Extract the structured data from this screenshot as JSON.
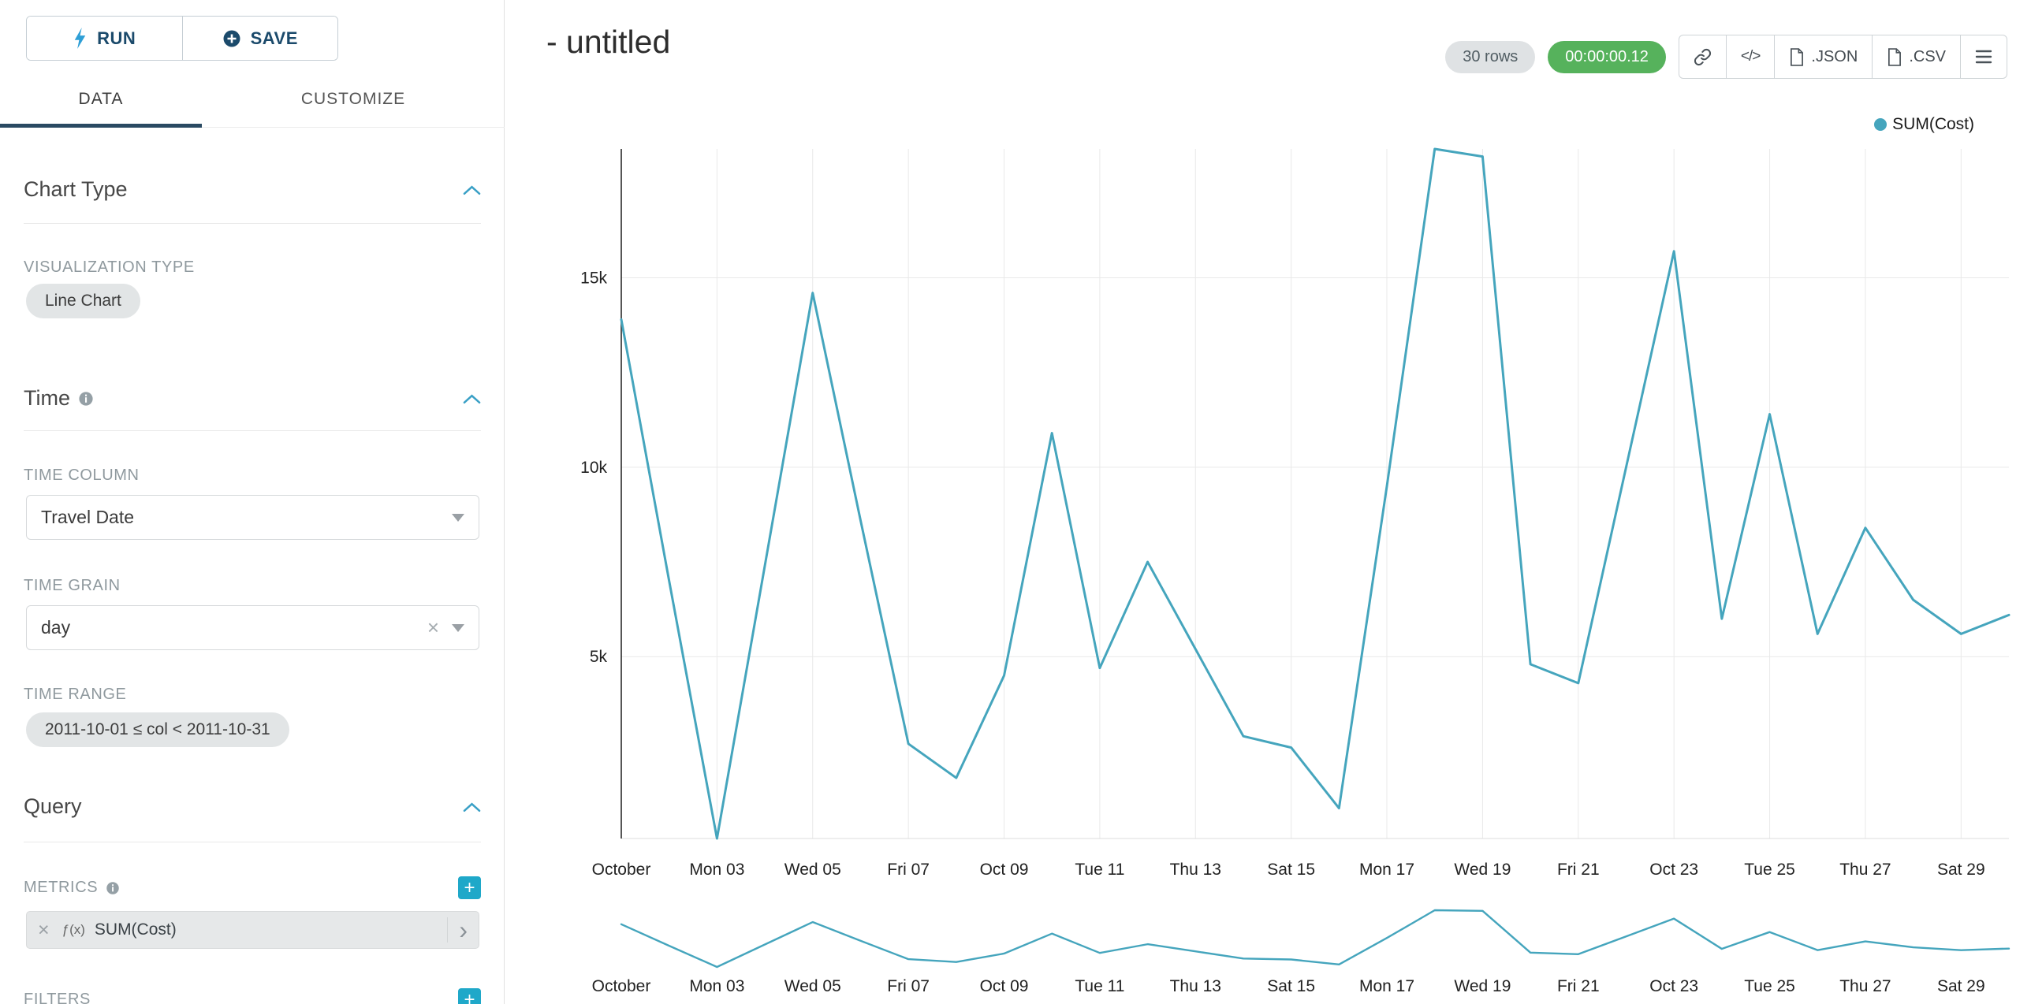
{
  "colors": {
    "line": "#45A5BD",
    "accent": "#1FA8C9",
    "success": "#56B25C",
    "navy": "#1B4A6B",
    "bolt": "#2E9FD6"
  },
  "sidebar": {
    "run": {
      "label": "RUN"
    },
    "save": {
      "label": "SAVE"
    },
    "tabs": {
      "data": "DATA",
      "customize": "CUSTOMIZE"
    },
    "chart_type": {
      "title": "Chart Type",
      "visualization_type_label": "VISUALIZATION TYPE",
      "visualization_type_value": "Line Chart"
    },
    "time": {
      "title": "Time",
      "time_column_label": "TIME COLUMN",
      "time_column_value": "Travel Date",
      "time_grain_label": "TIME GRAIN",
      "time_grain_value": "day",
      "time_range_label": "TIME RANGE",
      "time_range_value": "2011-10-01 ≤ col < 2011-10-31"
    },
    "query": {
      "title": "Query",
      "metrics_label": "METRICS",
      "metric_function_badge": "ƒ(x)",
      "metric_value": "SUM(Cost)",
      "filters_label": "FILTERS"
    }
  },
  "header": {
    "title": "- untitled",
    "row_count": "30 rows",
    "query_duration": "00:00:00.12",
    "embed_label": "</>",
    "export_json_label": ".JSON",
    "export_csv_label": ".CSV"
  },
  "legend": {
    "label": "SUM(Cost)"
  },
  "chart_data": {
    "type": "line",
    "title": "",
    "xlabel": "",
    "ylabel": "",
    "x_unit": "day",
    "x_tick_labels": [
      "October",
      "Mon 03",
      "Wed 05",
      "Fri 07",
      "Oct 09",
      "Tue 11",
      "Thu 13",
      "Sat 15",
      "Mon 17",
      "Wed 19",
      "Fri 21",
      "Oct 23",
      "Tue 25",
      "Thu 27",
      "Sat 29"
    ],
    "y_ticks": [
      {
        "label": "5k",
        "value": 5000
      },
      {
        "label": "10k",
        "value": 10000
      },
      {
        "label": "15k",
        "value": 15000
      }
    ],
    "ylim": [
      200,
      18400
    ],
    "grid": true,
    "legend_position": "top-right",
    "has_brush_minichart": true,
    "series": [
      {
        "name": "SUM(Cost)",
        "values": [
          13900,
          7000,
          200,
          7400,
          14600,
          8600,
          2700,
          1800,
          4500,
          10900,
          4700,
          7500,
          5200,
          2900,
          2600,
          1000,
          9500,
          18400,
          18200,
          4800,
          4300,
          10000,
          15700,
          6000,
          11400,
          5600,
          8400,
          6500,
          5600,
          6100
        ]
      }
    ]
  }
}
